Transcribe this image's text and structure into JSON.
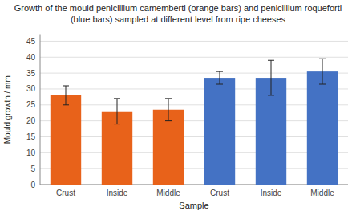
{
  "chart_data": {
    "type": "bar",
    "title": "Growth of the mould penicillium camemberti (orange bars) and penicillium roqueforti (blue bars) sampled at different level from ripe cheeses",
    "xlabel": "Sample",
    "ylabel": "Mould growth / mm",
    "categories": [
      "Crust",
      "Inside",
      "Middle",
      "Crust",
      "Inside",
      "Middle"
    ],
    "values": [
      28.0,
      23.0,
      23.5,
      33.5,
      33.5,
      35.5
    ],
    "errors": [
      3.0,
      4.0,
      3.5,
      2.0,
      5.5,
      4.0
    ],
    "colors": [
      "#E8621A",
      "#E8621A",
      "#E8621A",
      "#4472C4",
      "#4472C4",
      "#4472C4"
    ],
    "ylim": [
      0,
      47
    ],
    "yticks": [
      0,
      5,
      10,
      15,
      20,
      25,
      30,
      35,
      40,
      45
    ],
    "grid": true
  }
}
